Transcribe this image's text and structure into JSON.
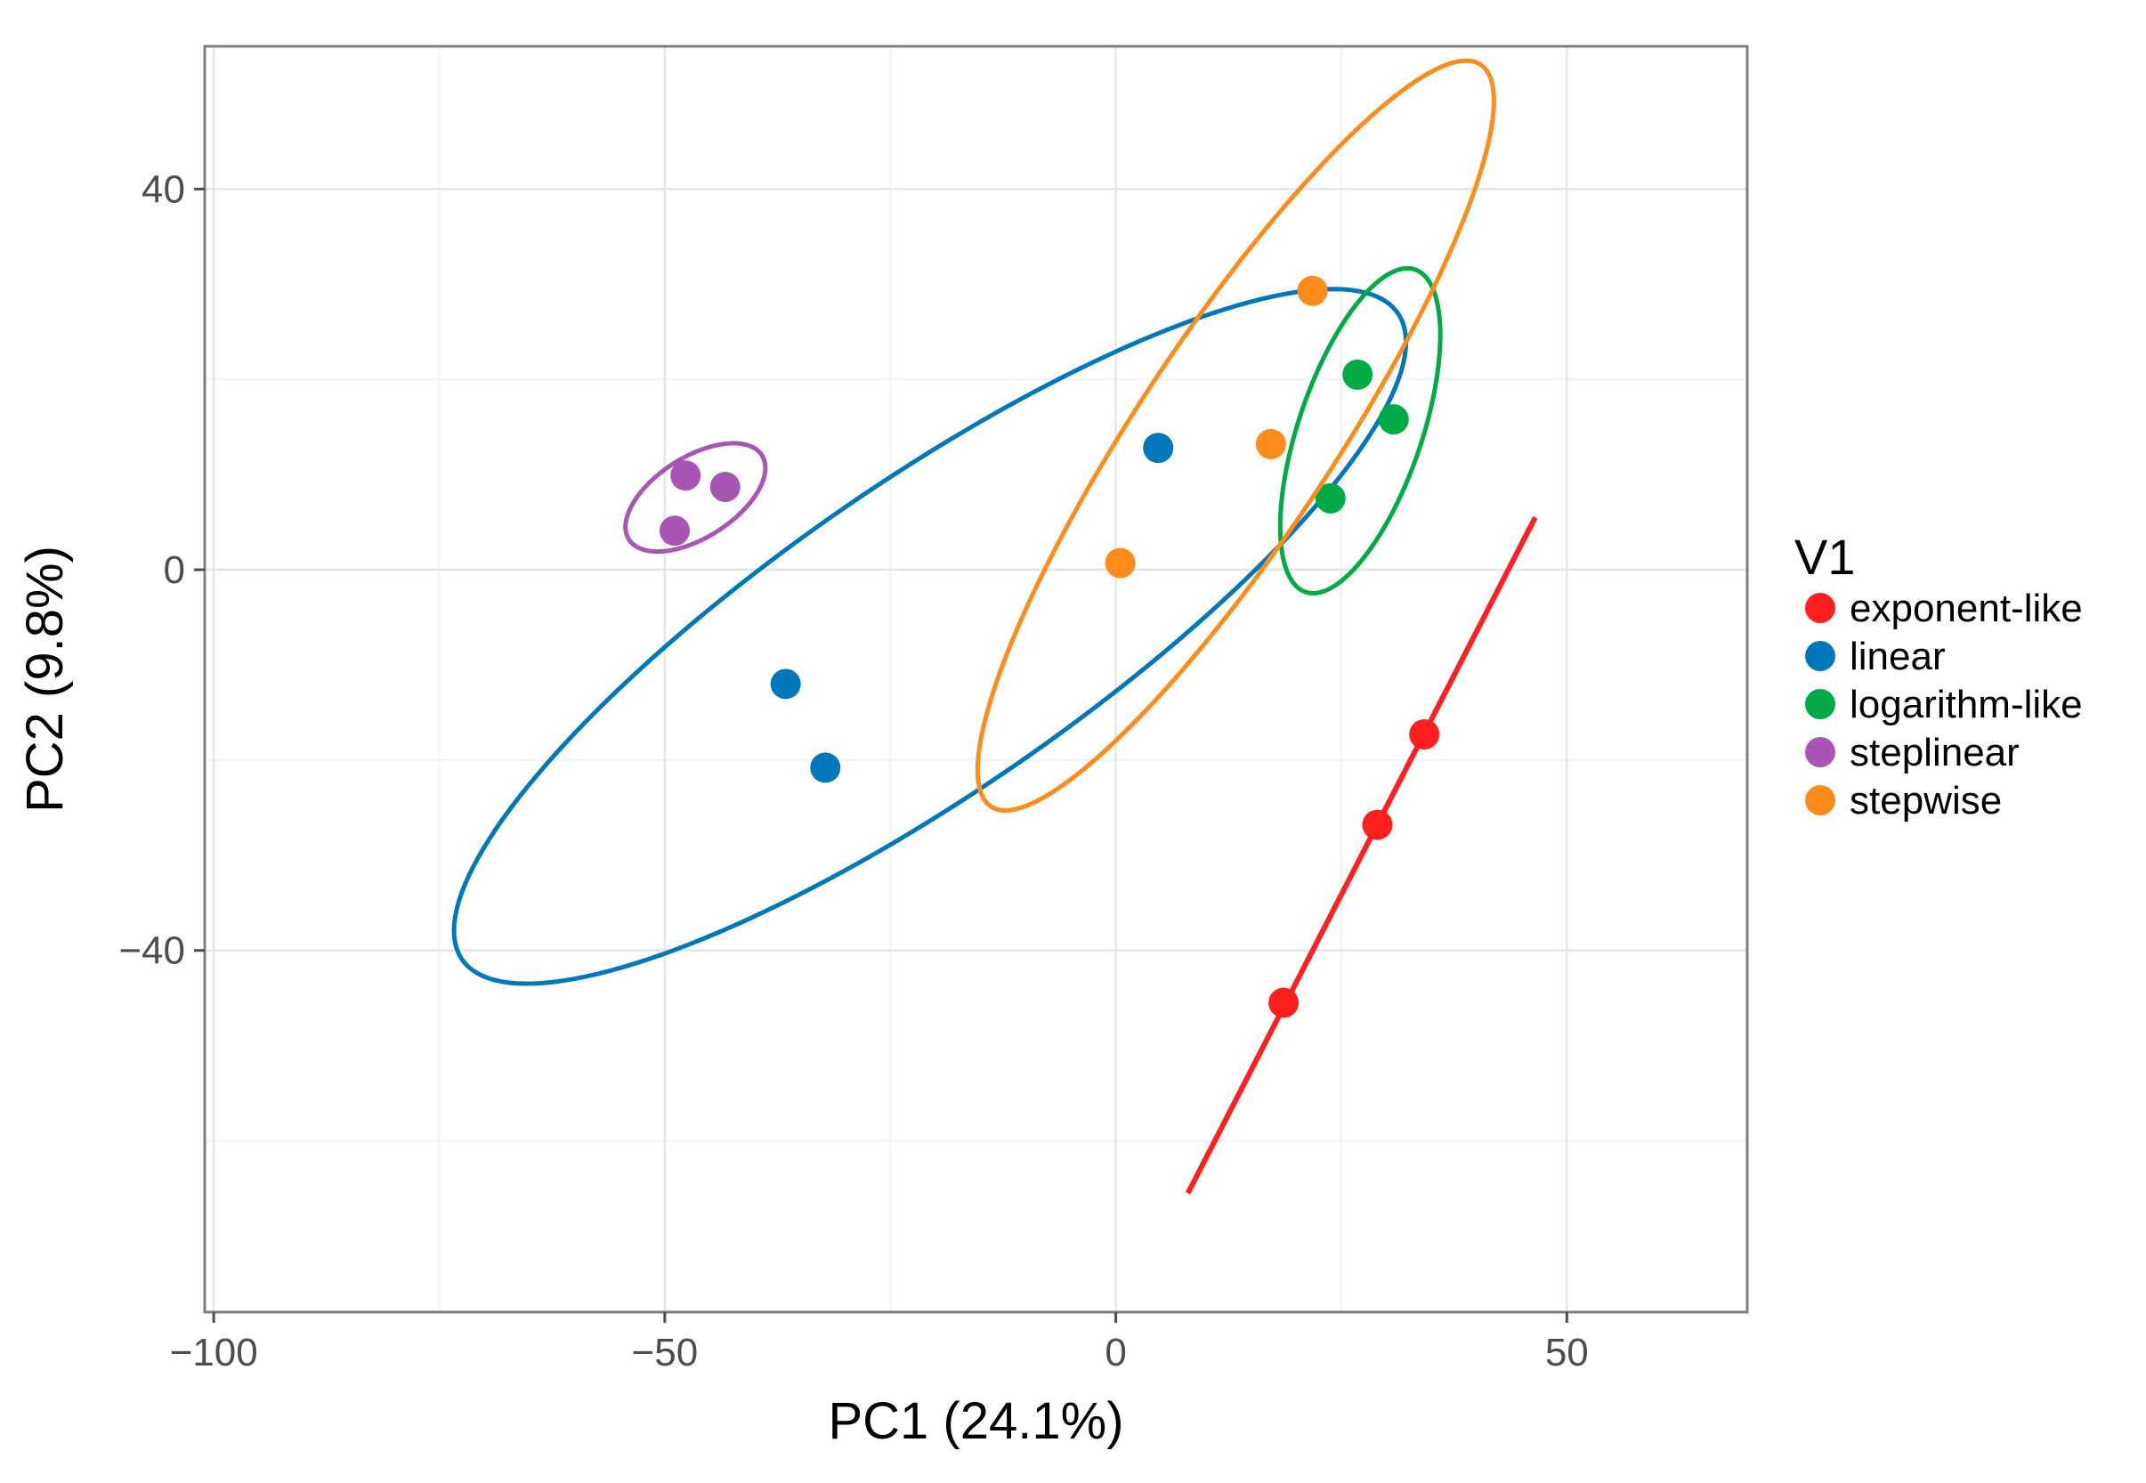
{
  "chart_data": {
    "type": "scatter",
    "title": "",
    "xlabel": "PC1 (24.1%)",
    "ylabel": "PC2 (9.8%)",
    "xlim": [
      -101,
      70
    ],
    "ylim": [
      -78,
      55
    ],
    "xticks": [
      -100,
      -50,
      0,
      50
    ],
    "xtick_labels": [
      "−100",
      "−50",
      "0",
      "50"
    ],
    "yticks": [
      -40,
      0,
      40
    ],
    "ytick_labels": [
      "−40",
      "0",
      "40"
    ],
    "minor_xticks": [
      -75,
      -25,
      25
    ],
    "minor_yticks": [
      -60,
      -20,
      20
    ],
    "grid": true,
    "legend": {
      "title": "V1",
      "position": "right"
    },
    "series": [
      {
        "name": "exponent-like",
        "color": "#FF1F1F",
        "points": [
          [
            18.6,
            -45.5
          ],
          [
            29,
            -26.8
          ],
          [
            34.2,
            -17.3
          ]
        ],
        "line": [
          [
            8,
            -65.5
          ],
          [
            46.5,
            5.5
          ]
        ]
      },
      {
        "name": "linear",
        "color": "#0077BB",
        "points": [
          [
            -36.6,
            -12
          ],
          [
            -32.2,
            -20.8
          ],
          [
            4.7,
            12.8
          ]
        ],
        "ellipse": {
          "cx": -20.6,
          "cy": -7,
          "rx": 62,
          "ry": 16.5,
          "angle": 33
        }
      },
      {
        "name": "logarithm-like",
        "color": "#00AA44",
        "points": [
          [
            26.8,
            20.5
          ],
          [
            30.8,
            15.8
          ],
          [
            23.8,
            7.5
          ]
        ],
        "ellipse": {
          "cx": 27.1,
          "cy": 14.6,
          "rx": 18,
          "ry": 6.8,
          "angle": 70
        }
      },
      {
        "name": "steplinear",
        "color": "#A855B5",
        "points": [
          [
            -47.7,
            9.9
          ],
          [
            -43.3,
            8.7
          ],
          [
            -48.9,
            4.1
          ]
        ],
        "ellipse": {
          "cx": -46.6,
          "cy": 7.6,
          "rx": 8.6,
          "ry": 4.3,
          "angle": 30
        }
      },
      {
        "name": "stepwise",
        "color": "#FF8C1A",
        "points": [
          [
            0.5,
            0.7
          ],
          [
            17.2,
            13.2
          ],
          [
            21.8,
            29.3
          ]
        ],
        "ellipse": {
          "cx": 13.3,
          "cy": 14.1,
          "rx": 47.5,
          "ry": 10.7,
          "angle": 55
        }
      }
    ]
  }
}
